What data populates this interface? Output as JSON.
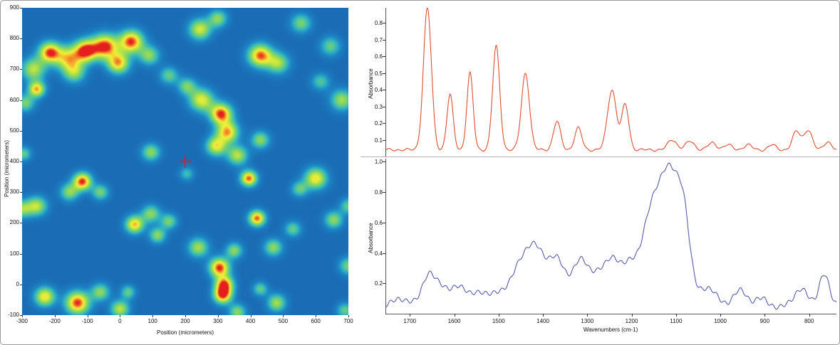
{
  "window": {
    "border_color": "#9a9a9a",
    "background": "#ffffff"
  },
  "chart_data": [
    {
      "id": "chemical-map",
      "type": "heatmap",
      "xlabel": "Position (micrometers)",
      "ylabel": "Position (micrometers)",
      "xlim": [
        -300,
        700
      ],
      "ylim": [
        -100,
        900
      ],
      "xticks": [
        -300,
        -200,
        -100,
        0,
        100,
        200,
        300,
        400,
        500,
        600,
        700
      ],
      "yticks": [
        -100,
        0,
        100,
        200,
        300,
        400,
        500,
        600,
        700,
        800,
        900
      ],
      "crosshair": {
        "x": 200,
        "y": 400,
        "color": "#e81c1c"
      },
      "colormap": [
        {
          "t": 0.0,
          "color": "#1a6cb4"
        },
        {
          "t": 0.15,
          "color": "#1d85c4"
        },
        {
          "t": 0.3,
          "color": "#2fb3c3"
        },
        {
          "t": 0.42,
          "color": "#5cc98f"
        },
        {
          "t": 0.55,
          "color": "#8ed75e"
        },
        {
          "t": 0.68,
          "color": "#c9e83e"
        },
        {
          "t": 0.78,
          "color": "#f2ee3a"
        },
        {
          "t": 0.87,
          "color": "#f5a52b"
        },
        {
          "t": 1.0,
          "color": "#e51f1f"
        }
      ],
      "blobs": [
        [
          -265,
          700,
          0.65,
          26
        ],
        [
          -215,
          755,
          0.95,
          24
        ],
        [
          -160,
          735,
          0.7,
          28
        ],
        [
          -105,
          760,
          1.0,
          26
        ],
        [
          -45,
          775,
          1.0,
          28
        ],
        [
          -5,
          720,
          0.85,
          24
        ],
        [
          35,
          790,
          1.0,
          26
        ],
        [
          -140,
          690,
          0.55,
          24
        ],
        [
          -255,
          635,
          0.85,
          18
        ],
        [
          -290,
          590,
          0.5,
          20
        ],
        [
          90,
          745,
          0.55,
          22
        ],
        [
          245,
          830,
          0.7,
          24
        ],
        [
          300,
          865,
          0.55,
          20
        ],
        [
          430,
          745,
          0.95,
          26
        ],
        [
          485,
          720,
          0.6,
          24
        ],
        [
          555,
          850,
          0.5,
          22
        ],
        [
          645,
          775,
          0.45,
          22
        ],
        [
          680,
          600,
          0.6,
          24
        ],
        [
          615,
          660,
          0.4,
          20
        ],
        [
          250,
          600,
          0.75,
          26
        ],
        [
          310,
          555,
          1.0,
          24
        ],
        [
          330,
          495,
          0.85,
          24
        ],
        [
          295,
          450,
          0.75,
          22
        ],
        [
          360,
          420,
          0.65,
          22
        ],
        [
          395,
          345,
          0.95,
          18
        ],
        [
          430,
          470,
          0.55,
          20
        ],
        [
          205,
          645,
          0.5,
          20
        ],
        [
          150,
          680,
          0.45,
          20
        ],
        [
          95,
          430,
          0.55,
          20
        ],
        [
          -115,
          335,
          1.0,
          20
        ],
        [
          -155,
          300,
          0.55,
          20
        ],
        [
          -60,
          300,
          0.5,
          18
        ],
        [
          -255,
          255,
          0.65,
          22
        ],
        [
          -300,
          245,
          0.55,
          20
        ],
        [
          -295,
          425,
          0.45,
          16
        ],
        [
          45,
          195,
          0.85,
          20
        ],
        [
          95,
          230,
          0.55,
          20
        ],
        [
          150,
          205,
          0.5,
          18
        ],
        [
          115,
          160,
          0.55,
          18
        ],
        [
          240,
          120,
          0.6,
          22
        ],
        [
          305,
          55,
          1.0,
          22
        ],
        [
          320,
          0,
          0.9,
          20
        ],
        [
          350,
          110,
          0.55,
          18
        ],
        [
          420,
          215,
          0.95,
          18
        ],
        [
          470,
          120,
          0.55,
          20
        ],
        [
          530,
          180,
          0.45,
          18
        ],
        [
          600,
          345,
          0.8,
          24
        ],
        [
          550,
          310,
          0.45,
          18
        ],
        [
          655,
          210,
          0.55,
          20
        ],
        [
          700,
          255,
          0.45,
          18
        ],
        [
          -230,
          -40,
          0.8,
          22
        ],
        [
          -130,
          -60,
          1.0,
          26
        ],
        [
          -60,
          -25,
          0.55,
          20
        ],
        [
          0,
          -80,
          0.65,
          20
        ],
        [
          25,
          -25,
          0.45,
          16
        ],
        [
          315,
          -35,
          0.95,
          20
        ],
        [
          360,
          -90,
          0.55,
          18
        ],
        [
          480,
          -60,
          0.6,
          20
        ],
        [
          430,
          -15,
          0.45,
          16
        ],
        [
          700,
          60,
          0.5,
          20
        ],
        [
          690,
          -85,
          0.45,
          18
        ],
        [
          205,
          360,
          0.35,
          16
        ]
      ]
    },
    {
      "id": "spectrum-top",
      "type": "line",
      "ylabel": "Absorbance",
      "color": "#dd4f33",
      "xlim": [
        1755,
        740
      ],
      "ylim": [
        0,
        0.89
      ],
      "yticks": [
        0.1,
        0.2,
        0.3,
        0.4,
        0.5,
        0.6,
        0.7,
        0.8
      ],
      "baseline": 0.04,
      "peaks": [
        [
          1662,
          0.85,
          9
        ],
        [
          1611,
          0.33,
          7
        ],
        [
          1566,
          0.46,
          7
        ],
        [
          1507,
          0.62,
          8
        ],
        [
          1441,
          0.46,
          9
        ],
        [
          1370,
          0.17,
          8
        ],
        [
          1322,
          0.13,
          8
        ],
        [
          1246,
          0.36,
          10
        ],
        [
          1216,
          0.27,
          8
        ],
        [
          1110,
          0.06,
          10
        ],
        [
          1070,
          0.05,
          10
        ],
        [
          1020,
          0.04,
          10
        ],
        [
          985,
          0.03,
          9
        ],
        [
          940,
          0.03,
          9
        ],
        [
          885,
          0.03,
          8
        ],
        [
          830,
          0.11,
          9
        ],
        [
          804,
          0.12,
          9
        ],
        [
          760,
          0.05,
          8
        ]
      ],
      "wiggle": {
        "a1": 0.005,
        "f1": 0.31,
        "a2": 0.004,
        "f2": 0.13
      }
    },
    {
      "id": "spectrum-bottom",
      "type": "line",
      "ylabel": "Absorbance",
      "xlabel": "Wavenumbers (cm-1)",
      "color": "#585da8",
      "xlim": [
        1755,
        740
      ],
      "ylim": [
        0,
        1.02
      ],
      "yticks": [
        0.2,
        0.4,
        0.6,
        0.8,
        1.0
      ],
      "xticks": [
        1700,
        1600,
        1500,
        1400,
        1300,
        1200,
        1100,
        1000,
        900,
        800
      ],
      "baseline": 0.05,
      "peaks": [
        [
          1720,
          0.05,
          18
        ],
        [
          1660,
          0.2,
          14
        ],
        [
          1632,
          0.1,
          16
        ],
        [
          1595,
          0.12,
          18
        ],
        [
          1550,
          0.09,
          18
        ],
        [
          1505,
          0.09,
          16
        ],
        [
          1455,
          0.24,
          20
        ],
        [
          1415,
          0.36,
          22
        ],
        [
          1368,
          0.27,
          18
        ],
        [
          1315,
          0.3,
          20
        ],
        [
          1280,
          0.1,
          14
        ],
        [
          1245,
          0.32,
          20
        ],
        [
          1205,
          0.18,
          15
        ],
        [
          1160,
          0.5,
          24
        ],
        [
          1113,
          0.82,
          26
        ],
        [
          1083,
          0.3,
          13
        ],
        [
          1030,
          0.12,
          18
        ],
        [
          958,
          0.1,
          16
        ],
        [
          912,
          0.05,
          13
        ],
        [
          820,
          0.12,
          14
        ],
        [
          768,
          0.22,
          11
        ]
      ],
      "wiggle": {
        "a1": 0.013,
        "f1": 0.35,
        "a2": 0.009,
        "f2": 0.12
      }
    }
  ]
}
